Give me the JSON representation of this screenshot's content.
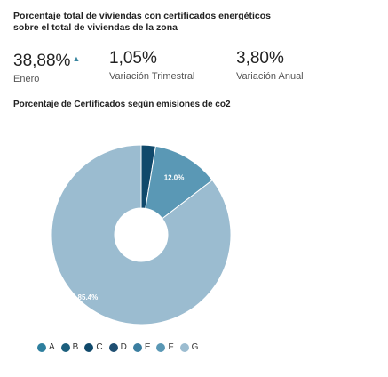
{
  "header": {
    "title": "Porcentaje total de viviendas con certificados energéticos sobre el total de viviendas de la zona"
  },
  "kpis": [
    {
      "value": "38,88%",
      "label": "Enero",
      "trend": "up"
    },
    {
      "value": "1,05%",
      "label": "Variación Trimestral"
    },
    {
      "value": "3,80%",
      "label": "Variación Anual"
    }
  ],
  "trend_glyph": "▲",
  "chart_title": "Porcentaje de Certificados según emisiones de co2",
  "chart_data": {
    "type": "pie",
    "variant": "donut",
    "title": "Porcentaje de Certificados según emisiones de co2",
    "categories": [
      "A",
      "B",
      "C",
      "D",
      "E",
      "F",
      "G"
    ],
    "values": [
      0.0,
      0.0,
      2.6,
      0.0,
      0.0,
      12.0,
      85.4
    ],
    "labels": [
      "",
      "",
      "",
      "",
      "",
      "12.0%",
      "85.4%"
    ],
    "colors": [
      "#2e7f9e",
      "#1c5f7d",
      "#10496b",
      "#1f4f72",
      "#3b7ea0",
      "#5a98b5",
      "#9bbcd0"
    ],
    "legend_position": "bottom"
  }
}
